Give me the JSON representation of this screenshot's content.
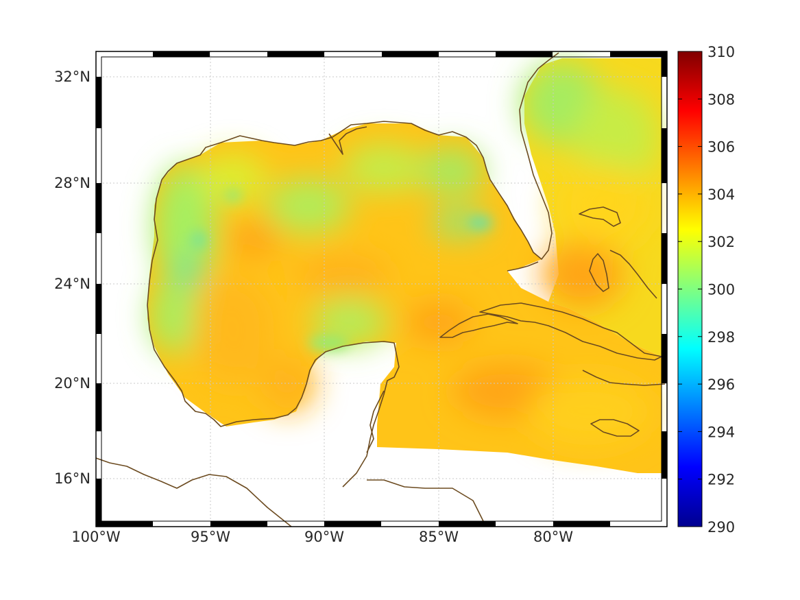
{
  "map": {
    "lon_labels": [
      "100°W",
      "95°W",
      "90°W",
      "85°W",
      "80°W"
    ],
    "lat_labels": [
      "32°N",
      "28°N",
      "24°N",
      "20°N",
      "16°N"
    ],
    "lon_range": [
      -100,
      -75
    ],
    "lat_range": [
      14.2,
      32.9
    ],
    "frame_style": "black-white checkered border",
    "grid": "dotted",
    "land_color": "#ffffff",
    "coastline_color": "#6b4a1f"
  },
  "colorbar": {
    "min": 290,
    "max": 310,
    "tick_labels": [
      "310",
      "308",
      "306",
      "304",
      "302",
      "300",
      "298",
      "296",
      "294",
      "292",
      "290"
    ],
    "colormap": "jet"
  }
}
